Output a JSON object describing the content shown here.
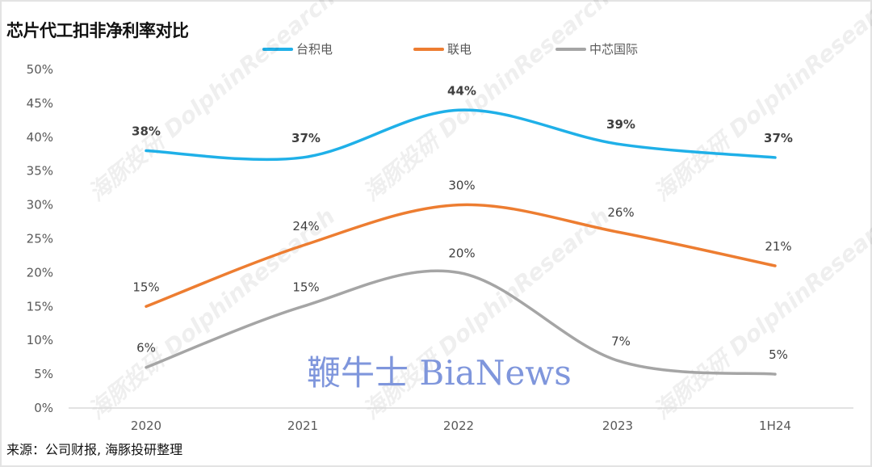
{
  "chart_data": {
    "type": "line",
    "title": "芯片代工扣非净利率对比",
    "categories": [
      "2020",
      "2021",
      "2022",
      "2023",
      "1H24"
    ],
    "series": [
      {
        "name": "台积电",
        "color": "#1fb0e8",
        "values": [
          38,
          37,
          44,
          39,
          37
        ],
        "labels": [
          "38%",
          "37%",
          "44%",
          "39%",
          "37%"
        ],
        "label_bold": true
      },
      {
        "name": "联电",
        "color": "#ed7d31",
        "values": [
          15,
          24,
          30,
          26,
          21
        ],
        "labels": [
          "15%",
          "24%",
          "30%",
          "26%",
          "21%"
        ],
        "label_bold": false
      },
      {
        "name": "中芯国际",
        "color": "#a5a5a5",
        "values": [
          6,
          15,
          20,
          7,
          5
        ],
        "labels": [
          "6%",
          "15%",
          "20%",
          "7%",
          "5%"
        ],
        "label_bold": false
      }
    ],
    "yticks": [
      "0%",
      "5%",
      "10%",
      "15%",
      "20%",
      "25%",
      "30%",
      "35%",
      "40%",
      "45%",
      "50%"
    ],
    "ylim": [
      0,
      50
    ],
    "xlabel": "",
    "ylabel": "",
    "grid": false,
    "legend_position": "top",
    "smooth": true
  },
  "source": "来源：公司财报, 海豚投研整理",
  "watermarks": {
    "brand": "鞭牛士 BiaNews",
    "research_cn": "海豚投研",
    "research_en": "DolphinResearch"
  }
}
